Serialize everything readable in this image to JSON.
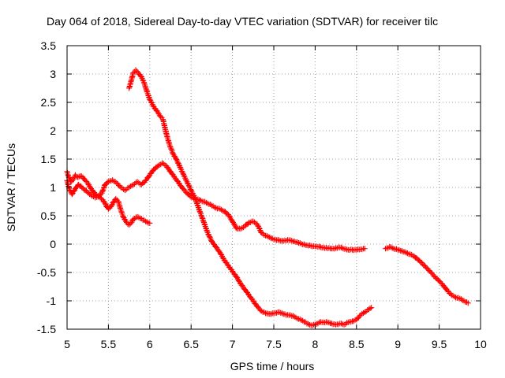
{
  "chart_data": {
    "type": "scatter",
    "title": "Day 064 of 2018, Sidereal Day-to-day VTEC variation (SDTVAR) for receiver tilc",
    "xlabel": "GPS time / hours",
    "ylabel": "SDTVAR / TECUs",
    "xlim": [
      5,
      10
    ],
    "ylim": [
      -1.5,
      3.5
    ],
    "xticks": [
      "5",
      "5.5",
      "6",
      "6.5",
      "7",
      "7.5",
      "8",
      "8.5",
      "9",
      "9.5",
      "10"
    ],
    "yticks": [
      "3.5",
      "3",
      "2.5",
      "2",
      "1.5",
      "1",
      "0.5",
      "0",
      "-0.5",
      "-1",
      "-1.5"
    ],
    "grid": true,
    "marker": "plus",
    "color": "#ff0000",
    "series": [
      {
        "name": "satellite-track-1",
        "points": [
          [
            5.0,
            1.28
          ],
          [
            5.02,
            1.18
          ],
          [
            5.05,
            1.1
          ],
          [
            5.08,
            1.15
          ],
          [
            5.1,
            1.22
          ],
          [
            5.13,
            1.18
          ],
          [
            5.16,
            1.2
          ],
          [
            5.19,
            1.18
          ],
          [
            5.22,
            1.12
          ],
          [
            5.25,
            1.08
          ],
          [
            5.28,
            1.0
          ],
          [
            5.32,
            0.92
          ],
          [
            5.36,
            0.85
          ],
          [
            5.4,
            0.82
          ],
          [
            5.43,
            0.78
          ],
          [
            5.46,
            0.72
          ],
          [
            5.48,
            0.66
          ],
          [
            5.5,
            0.62
          ],
          [
            5.53,
            0.66
          ],
          [
            5.56,
            0.74
          ],
          [
            5.59,
            0.8
          ],
          [
            5.62,
            0.75
          ],
          [
            5.65,
            0.6
          ],
          [
            5.68,
            0.48
          ],
          [
            5.72,
            0.38
          ],
          [
            5.75,
            0.34
          ],
          [
            5.78,
            0.38
          ],
          [
            5.8,
            0.44
          ],
          [
            5.85,
            0.48
          ],
          [
            5.9,
            0.45
          ],
          [
            5.95,
            0.4
          ],
          [
            6.0,
            0.37
          ]
        ]
      },
      {
        "name": "satellite-track-2",
        "points": [
          [
            5.0,
            1.12
          ],
          [
            5.03,
            0.95
          ],
          [
            5.06,
            0.88
          ],
          [
            5.1,
            0.98
          ],
          [
            5.14,
            1.05
          ],
          [
            5.18,
            1.0
          ],
          [
            5.22,
            0.95
          ],
          [
            5.26,
            0.9
          ],
          [
            5.3,
            0.85
          ],
          [
            5.34,
            0.82
          ],
          [
            5.38,
            0.85
          ],
          [
            5.42,
            0.9
          ],
          [
            5.46,
            1.05
          ],
          [
            5.5,
            1.1
          ],
          [
            5.55,
            1.13
          ],
          [
            5.6,
            1.08
          ],
          [
            5.65,
            1.0
          ],
          [
            5.7,
            0.95
          ],
          [
            5.75,
            1.0
          ],
          [
            5.8,
            1.05
          ],
          [
            5.85,
            1.1
          ],
          [
            5.9,
            1.05
          ],
          [
            5.95,
            1.12
          ],
          [
            6.0,
            1.22
          ],
          [
            6.05,
            1.32
          ],
          [
            6.1,
            1.38
          ],
          [
            6.15,
            1.43
          ],
          [
            6.2,
            1.38
          ],
          [
            6.25,
            1.28
          ],
          [
            6.3,
            1.18
          ],
          [
            6.35,
            1.08
          ],
          [
            6.4,
            0.98
          ],
          [
            6.45,
            0.9
          ],
          [
            6.5,
            0.83
          ],
          [
            6.55,
            0.8
          ],
          [
            6.6,
            0.78
          ],
          [
            6.65,
            0.75
          ],
          [
            6.7,
            0.72
          ],
          [
            6.75,
            0.68
          ],
          [
            6.8,
            0.64
          ],
          [
            6.85,
            0.62
          ],
          [
            6.9,
            0.58
          ],
          [
            6.95,
            0.52
          ],
          [
            7.0,
            0.4
          ],
          [
            7.05,
            0.28
          ],
          [
            7.1,
            0.27
          ],
          [
            7.15,
            0.32
          ],
          [
            7.2,
            0.38
          ],
          [
            7.25,
            0.4
          ],
          [
            7.3,
            0.35
          ],
          [
            7.35,
            0.2
          ],
          [
            7.4,
            0.15
          ],
          [
            7.45,
            0.12
          ],
          [
            7.5,
            0.08
          ],
          [
            7.6,
            0.06
          ],
          [
            7.7,
            0.07
          ],
          [
            7.8,
            0.02
          ],
          [
            7.9,
            -0.02
          ],
          [
            8.0,
            -0.04
          ],
          [
            8.1,
            -0.06
          ],
          [
            8.2,
            -0.08
          ],
          [
            8.3,
            -0.06
          ],
          [
            8.4,
            -0.1
          ],
          [
            8.5,
            -0.1
          ],
          [
            8.55,
            -0.09
          ],
          [
            8.6,
            -0.08
          ]
        ]
      },
      {
        "name": "satellite-track-3",
        "points": [
          [
            5.75,
            2.75
          ],
          [
            5.78,
            2.9
          ],
          [
            5.8,
            3.02
          ],
          [
            5.83,
            3.07
          ],
          [
            5.86,
            3.02
          ],
          [
            5.9,
            2.95
          ],
          [
            5.93,
            2.85
          ],
          [
            5.96,
            2.72
          ],
          [
            6.0,
            2.55
          ],
          [
            6.05,
            2.42
          ],
          [
            6.1,
            2.32
          ],
          [
            6.13,
            2.25
          ],
          [
            6.16,
            2.2
          ],
          [
            6.2,
            1.95
          ],
          [
            6.24,
            1.75
          ],
          [
            6.28,
            1.6
          ],
          [
            6.32,
            1.5
          ],
          [
            6.36,
            1.38
          ],
          [
            6.4,
            1.25
          ],
          [
            6.45,
            1.1
          ],
          [
            6.5,
            0.95
          ],
          [
            6.55,
            0.8
          ],
          [
            6.6,
            0.6
          ],
          [
            6.65,
            0.4
          ],
          [
            6.7,
            0.2
          ],
          [
            6.75,
            0.05
          ],
          [
            6.8,
            -0.05
          ],
          [
            6.85,
            -0.15
          ],
          [
            6.9,
            -0.28
          ],
          [
            6.95,
            -0.38
          ],
          [
            7.0,
            -0.48
          ],
          [
            7.05,
            -0.58
          ],
          [
            7.1,
            -0.7
          ],
          [
            7.15,
            -0.8
          ],
          [
            7.2,
            -0.9
          ],
          [
            7.25,
            -1.0
          ],
          [
            7.3,
            -1.1
          ],
          [
            7.35,
            -1.18
          ],
          [
            7.4,
            -1.22
          ],
          [
            7.45,
            -1.23
          ],
          [
            7.5,
            -1.22
          ],
          [
            7.55,
            -1.2
          ],
          [
            7.6,
            -1.22
          ],
          [
            7.65,
            -1.25
          ],
          [
            7.7,
            -1.25
          ],
          [
            7.75,
            -1.28
          ],
          [
            7.8,
            -1.32
          ],
          [
            7.85,
            -1.35
          ],
          [
            7.9,
            -1.4
          ],
          [
            7.95,
            -1.43
          ],
          [
            8.0,
            -1.42
          ],
          [
            8.05,
            -1.38
          ],
          [
            8.1,
            -1.38
          ],
          [
            8.15,
            -1.38
          ],
          [
            8.2,
            -1.4
          ],
          [
            8.25,
            -1.42
          ],
          [
            8.3,
            -1.4
          ],
          [
            8.35,
            -1.42
          ],
          [
            8.4,
            -1.38
          ],
          [
            8.45,
            -1.36
          ],
          [
            8.5,
            -1.33
          ],
          [
            8.55,
            -1.25
          ],
          [
            8.6,
            -1.2
          ],
          [
            8.65,
            -1.15
          ],
          [
            8.68,
            -1.12
          ]
        ]
      },
      {
        "name": "satellite-track-4",
        "points": [
          [
            8.85,
            -0.08
          ],
          [
            8.9,
            -0.05
          ],
          [
            8.95,
            -0.08
          ],
          [
            9.0,
            -0.1
          ],
          [
            9.05,
            -0.12
          ],
          [
            9.1,
            -0.15
          ],
          [
            9.15,
            -0.18
          ],
          [
            9.2,
            -0.22
          ],
          [
            9.25,
            -0.28
          ],
          [
            9.3,
            -0.35
          ],
          [
            9.35,
            -0.42
          ],
          [
            9.4,
            -0.5
          ],
          [
            9.45,
            -0.58
          ],
          [
            9.5,
            -0.65
          ],
          [
            9.55,
            -0.73
          ],
          [
            9.6,
            -0.82
          ],
          [
            9.65,
            -0.9
          ],
          [
            9.7,
            -0.94
          ],
          [
            9.75,
            -0.96
          ],
          [
            9.8,
            -1.0
          ],
          [
            9.85,
            -1.04
          ]
        ]
      }
    ]
  }
}
